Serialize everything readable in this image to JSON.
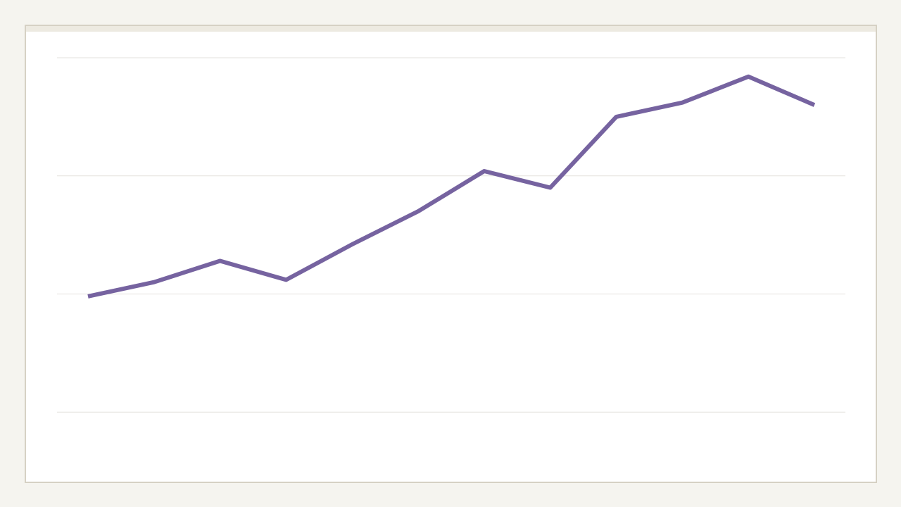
{
  "colors": {
    "line": "#7663a0",
    "gridline": "#e3e1dc",
    "frame_border": "#d6d1c4",
    "frame_band": "#edeae1",
    "page_background": "#f5f4ef"
  },
  "chart_data": {
    "type": "line",
    "x": [
      1,
      2,
      3,
      4,
      5,
      6,
      7,
      8,
      9,
      10,
      11,
      12
    ],
    "series": [
      {
        "values": [
          39.8,
          41.0,
          42.8,
          41.2,
          44.2,
          47.0,
          50.4,
          49.0,
          55.0,
          56.2,
          58.4,
          56.0
        ]
      }
    ],
    "ylim": [
      20,
      60
    ],
    "grid_y": [
      30,
      40,
      50,
      60
    ],
    "grid": true,
    "legend": "none"
  }
}
